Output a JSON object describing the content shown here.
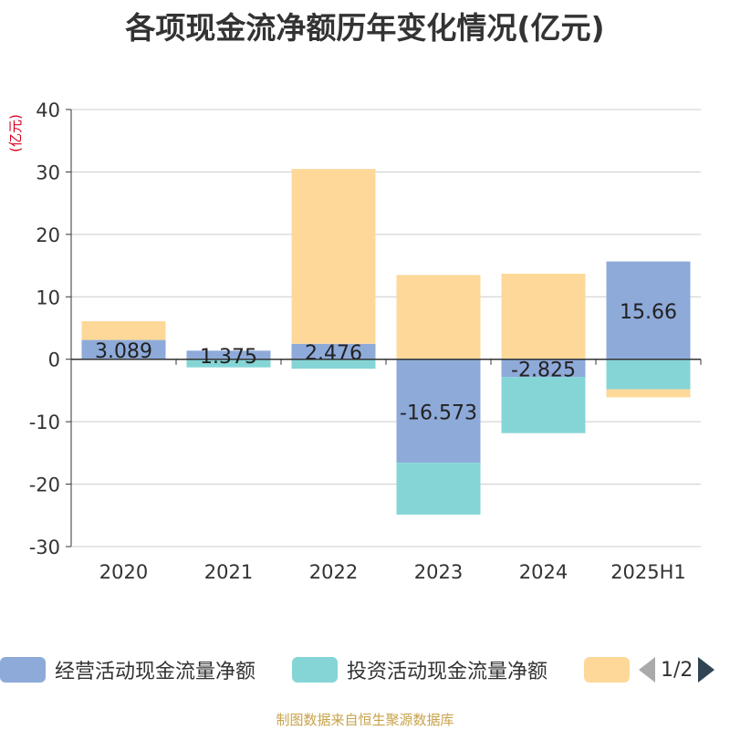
{
  "title": "各项现金流净额历年变化情况(亿元)",
  "footer": "制图数据来自恒生聚源数据库",
  "legend": {
    "items": [
      {
        "label": "经营活动现金流量净额",
        "color": "#8eaad9"
      },
      {
        "label": "投资活动现金流量净额",
        "color": "#85d5d6"
      },
      {
        "label": "",
        "color": "#fdd899"
      }
    ],
    "page": "1/2"
  },
  "chart_data": {
    "type": "bar",
    "stacked": true,
    "categories": [
      "2020",
      "2021",
      "2022",
      "2023",
      "2024",
      "2025H1"
    ],
    "ylabel": "(亿元)",
    "ylim": [
      -30,
      40
    ],
    "yticks": [
      -30,
      -20,
      -10,
      0,
      10,
      20,
      30,
      40
    ],
    "grid": true,
    "legend_position": "bottom",
    "series": [
      {
        "name": "经营活动现金流量净额",
        "color": "#8eaad9",
        "values": [
          3.089,
          1.375,
          2.476,
          -16.573,
          -2.825,
          15.66
        ],
        "labels": [
          "3.089",
          "1.375",
          "2.476",
          "-16.573",
          "-2.825",
          "15.66"
        ]
      },
      {
        "name": "投资活动现金流量净额",
        "color": "#85d5d6",
        "values": [
          0,
          -1.3,
          -1.5,
          -8.3,
          -9.0,
          -4.8
        ]
      },
      {
        "name": "",
        "color": "#fdd899",
        "values": [
          3.0,
          0,
          28.0,
          13.5,
          13.7,
          -1.3
        ]
      }
    ]
  }
}
